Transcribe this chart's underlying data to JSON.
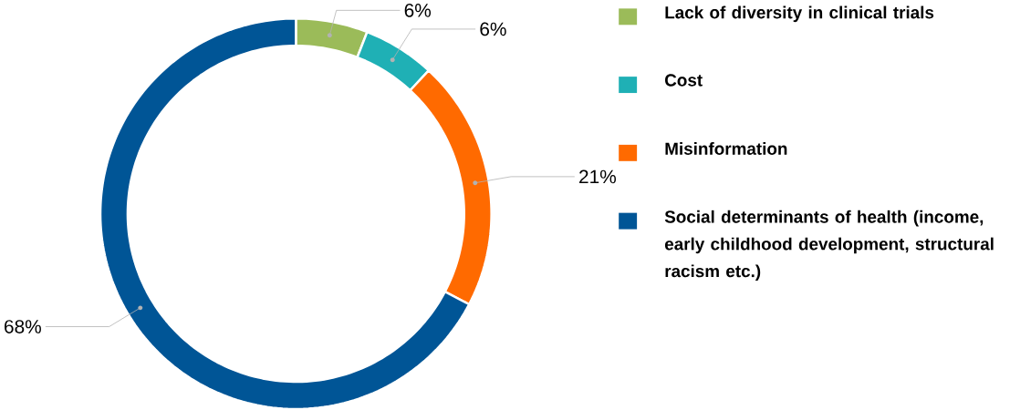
{
  "chart_data": {
    "type": "donut",
    "categories": [
      "Lack of diversity in clinical trials",
      "Cost",
      "Misinformation",
      "Social determinants of health (income, early childhood development, structural racism etc.)"
    ],
    "values": [
      6,
      6,
      21,
      68
    ],
    "colors": [
      "#9bbb59",
      "#1fb0b5",
      "#ff6a00",
      "#005596"
    ],
    "value_labels": [
      "6%",
      "6%",
      "21%",
      "68%"
    ],
    "legend": "right"
  }
}
